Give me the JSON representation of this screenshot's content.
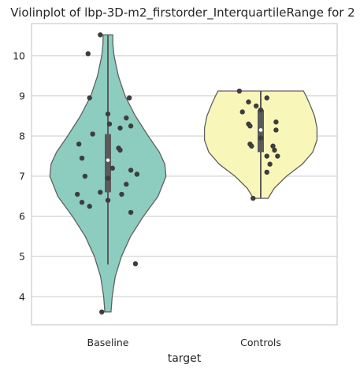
{
  "chart_data": {
    "type": "violin",
    "title": "Violinplot of lbp-3D-m2_firstorder_InterquartileRange for 2",
    "xlabel": "target",
    "ylabel": "",
    "categories": [
      "Baseline",
      "Controls"
    ],
    "ylim": [
      3.3,
      10.8
    ],
    "yticks": [
      4,
      5,
      6,
      7,
      8,
      9,
      10
    ],
    "grid": "horizontal",
    "legend": "none",
    "colors": {
      "Baseline": "#8dcdc0",
      "Controls": "#f8f7b9"
    },
    "violins": [
      {
        "category": "Baseline",
        "min": 3.62,
        "max": 10.52,
        "q1": 6.6,
        "median": 7.4,
        "q3": 8.05,
        "whisker_low": 4.8,
        "whisker_high": 10.52,
        "profile": [
          [
            3.62,
            0.05
          ],
          [
            4.0,
            0.07
          ],
          [
            4.5,
            0.12
          ],
          [
            5.0,
            0.22
          ],
          [
            5.5,
            0.37
          ],
          [
            6.0,
            0.58
          ],
          [
            6.5,
            0.82
          ],
          [
            7.0,
            0.95
          ],
          [
            7.3,
            0.93
          ],
          [
            7.6,
            0.84
          ],
          [
            8.0,
            0.66
          ],
          [
            8.5,
            0.45
          ],
          [
            9.0,
            0.28
          ],
          [
            9.5,
            0.17
          ],
          [
            10.0,
            0.1
          ],
          [
            10.3,
            0.08
          ],
          [
            10.52,
            0.08
          ]
        ],
        "points": [
          [
            10.52,
            -0.05
          ],
          [
            10.05,
            -0.13
          ],
          [
            8.95,
            -0.12
          ],
          [
            8.95,
            0.14
          ],
          [
            8.55,
            0.0
          ],
          [
            8.45,
            0.12
          ],
          [
            8.3,
            0.01
          ],
          [
            8.25,
            0.15
          ],
          [
            8.2,
            0.08
          ],
          [
            8.05,
            -0.1
          ],
          [
            7.8,
            -0.19
          ],
          [
            7.7,
            0.07
          ],
          [
            7.65,
            0.08
          ],
          [
            7.45,
            -0.17
          ],
          [
            7.2,
            0.03
          ],
          [
            7.15,
            0.15
          ],
          [
            7.05,
            0.19
          ],
          [
            7.0,
            -0.15
          ],
          [
            6.95,
            0.0
          ],
          [
            6.8,
            0.12
          ],
          [
            6.6,
            -0.05
          ],
          [
            6.55,
            -0.2
          ],
          [
            6.55,
            0.09
          ],
          [
            6.4,
            0.0
          ],
          [
            6.35,
            -0.17
          ],
          [
            6.25,
            -0.12
          ],
          [
            6.1,
            0.15
          ],
          [
            4.82,
            0.18
          ],
          [
            3.62,
            -0.04
          ]
        ]
      },
      {
        "category": "Controls",
        "min": 6.45,
        "max": 9.12,
        "q1": 7.6,
        "median": 8.15,
        "q3": 8.65,
        "whisker_low": 6.45,
        "whisker_high": 9.12,
        "profile": [
          [
            6.45,
            0.12
          ],
          [
            6.7,
            0.22
          ],
          [
            7.0,
            0.42
          ],
          [
            7.3,
            0.68
          ],
          [
            7.6,
            0.85
          ],
          [
            7.9,
            0.92
          ],
          [
            8.2,
            0.92
          ],
          [
            8.5,
            0.88
          ],
          [
            8.8,
            0.8
          ],
          [
            9.0,
            0.74
          ],
          [
            9.12,
            0.7
          ]
        ],
        "points": [
          [
            9.12,
            -0.14
          ],
          [
            8.95,
            0.04
          ],
          [
            8.85,
            -0.08
          ],
          [
            8.75,
            -0.03
          ],
          [
            8.65,
            0.0
          ],
          [
            8.6,
            -0.12
          ],
          [
            8.35,
            0.1
          ],
          [
            8.3,
            -0.08
          ],
          [
            8.25,
            -0.07
          ],
          [
            8.15,
            0.1
          ],
          [
            7.95,
            0.0
          ],
          [
            7.8,
            -0.07
          ],
          [
            7.75,
            -0.06
          ],
          [
            7.75,
            0.08
          ],
          [
            7.65,
            0.09
          ],
          [
            7.5,
            0.04
          ],
          [
            7.5,
            0.11
          ],
          [
            7.3,
            0.06
          ],
          [
            7.1,
            0.04
          ],
          [
            6.45,
            -0.05
          ]
        ]
      }
    ]
  }
}
